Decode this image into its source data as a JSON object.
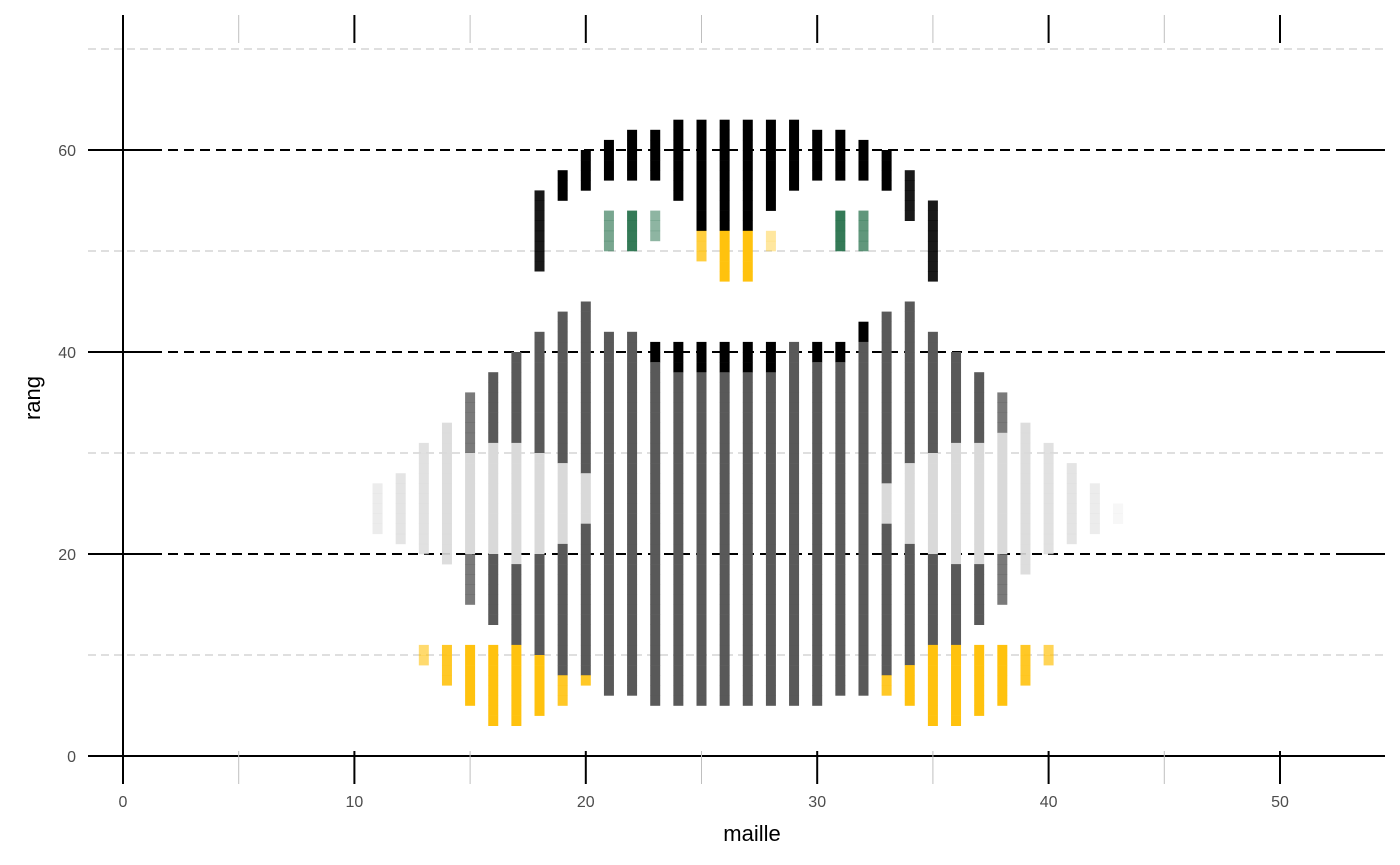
{
  "chart_data": {
    "type": "heatmap",
    "title": "",
    "xlabel": "maille",
    "ylabel": "rang",
    "xlim": [
      -1.5,
      54.5
    ],
    "ylim": [
      -2.5,
      70
    ],
    "x_ticks": [
      0,
      10,
      20,
      30,
      40,
      50
    ],
    "y_ticks": [
      0,
      20,
      40,
      60
    ],
    "x_minor_ticks": [
      5,
      15,
      25,
      35,
      45
    ],
    "y_minor_ticks": [
      10,
      30,
      50,
      70
    ],
    "grid": true,
    "legend": "none",
    "colors": {
      "background": "#ffffff",
      "black": "#000000",
      "dark_grey": "#595959",
      "light_grey": "#d9d9d9",
      "yellow": "#ffc20e",
      "green": "#1e6b45",
      "minor_grid": "#bfbfbf"
    },
    "columns": [
      {
        "x": 11,
        "segments": [
          {
            "y0": 22,
            "y1": 27,
            "color": "light_grey",
            "alpha": 0.5
          }
        ]
      },
      {
        "x": 12,
        "segments": [
          {
            "y0": 21,
            "y1": 28,
            "color": "light_grey",
            "alpha": 0.7
          }
        ]
      },
      {
        "x": 13,
        "segments": [
          {
            "y0": 20,
            "y1": 31,
            "color": "light_grey",
            "alpha": 0.8
          },
          {
            "y0": 9,
            "y1": 11,
            "color": "yellow",
            "alpha": 0.6
          }
        ]
      },
      {
        "x": 14,
        "segments": [
          {
            "y0": 19,
            "y1": 33,
            "color": "light_grey",
            "alpha": 0.9
          },
          {
            "y0": 7,
            "y1": 11,
            "color": "yellow",
            "alpha": 0.9
          }
        ]
      },
      {
        "x": 15,
        "segments": [
          {
            "y0": 30,
            "y1": 36,
            "color": "dark_grey",
            "alpha": 0.8
          },
          {
            "y0": 20,
            "y1": 30,
            "color": "light_grey",
            "alpha": 1
          },
          {
            "y0": 15,
            "y1": 20,
            "color": "dark_grey",
            "alpha": 0.8
          },
          {
            "y0": 5,
            "y1": 11,
            "color": "yellow",
            "alpha": 1
          }
        ]
      },
      {
        "x": 16,
        "segments": [
          {
            "y0": 31,
            "y1": 38,
            "color": "dark_grey",
            "alpha": 1
          },
          {
            "y0": 20,
            "y1": 31,
            "color": "light_grey",
            "alpha": 1
          },
          {
            "y0": 13,
            "y1": 20,
            "color": "dark_grey",
            "alpha": 1
          },
          {
            "y0": 3,
            "y1": 11,
            "color": "yellow",
            "alpha": 1
          }
        ]
      },
      {
        "x": 17,
        "segments": [
          {
            "y0": 31,
            "y1": 40,
            "color": "dark_grey",
            "alpha": 1
          },
          {
            "y0": 19,
            "y1": 31,
            "color": "light_grey",
            "alpha": 1
          },
          {
            "y0": 11,
            "y1": 19,
            "color": "dark_grey",
            "alpha": 1
          },
          {
            "y0": 3,
            "y1": 11,
            "color": "yellow",
            "alpha": 1
          }
        ]
      },
      {
        "x": 18,
        "segments": [
          {
            "y0": 48,
            "y1": 56,
            "color": "black",
            "alpha": 0.9
          },
          {
            "y0": 30,
            "y1": 42,
            "color": "dark_grey",
            "alpha": 1
          },
          {
            "y0": 20,
            "y1": 30,
            "color": "light_grey",
            "alpha": 1
          },
          {
            "y0": 10,
            "y1": 20,
            "color": "dark_grey",
            "alpha": 1
          },
          {
            "y0": 4,
            "y1": 10,
            "color": "yellow",
            "alpha": 1
          }
        ]
      },
      {
        "x": 19,
        "segments": [
          {
            "y0": 55,
            "y1": 58,
            "color": "black",
            "alpha": 1
          },
          {
            "y0": 29,
            "y1": 44,
            "color": "dark_grey",
            "alpha": 1
          },
          {
            "y0": 21,
            "y1": 29,
            "color": "light_grey",
            "alpha": 1
          },
          {
            "y0": 8,
            "y1": 21,
            "color": "dark_grey",
            "alpha": 1
          },
          {
            "y0": 5,
            "y1": 8,
            "color": "yellow",
            "alpha": 0.9
          }
        ]
      },
      {
        "x": 20,
        "segments": [
          {
            "y0": 56,
            "y1": 60,
            "color": "black",
            "alpha": 1
          },
          {
            "y0": 28,
            "y1": 45,
            "color": "dark_grey",
            "alpha": 1
          },
          {
            "y0": 23,
            "y1": 28,
            "color": "light_grey",
            "alpha": 1
          },
          {
            "y0": 8,
            "y1": 23,
            "color": "dark_grey",
            "alpha": 1
          },
          {
            "y0": 7,
            "y1": 8,
            "color": "yellow",
            "alpha": 0.9
          }
        ]
      },
      {
        "x": 21,
        "segments": [
          {
            "y0": 57,
            "y1": 61,
            "color": "black",
            "alpha": 1
          },
          {
            "y0": 50,
            "y1": 54,
            "color": "green",
            "alpha": 0.6
          },
          {
            "y0": 26,
            "y1": 42,
            "color": "dark_grey",
            "alpha": 1
          },
          {
            "y0": 6,
            "y1": 26,
            "color": "dark_grey",
            "alpha": 1
          }
        ]
      },
      {
        "x": 22,
        "segments": [
          {
            "y0": 57,
            "y1": 62,
            "color": "black",
            "alpha": 1
          },
          {
            "y0": 50,
            "y1": 54,
            "color": "green",
            "alpha": 0.9
          },
          {
            "y0": 6,
            "y1": 42,
            "color": "dark_grey",
            "alpha": 1
          }
        ]
      },
      {
        "x": 23,
        "segments": [
          {
            "y0": 57,
            "y1": 62,
            "color": "black",
            "alpha": 1
          },
          {
            "y0": 51,
            "y1": 54,
            "color": "green",
            "alpha": 0.5
          },
          {
            "y0": 39,
            "y1": 41,
            "color": "black",
            "alpha": 1
          },
          {
            "y0": 5,
            "y1": 39,
            "color": "dark_grey",
            "alpha": 1
          }
        ]
      },
      {
        "x": 24,
        "segments": [
          {
            "y0": 55,
            "y1": 63,
            "color": "black",
            "alpha": 1
          },
          {
            "y0": 38,
            "y1": 41,
            "color": "black",
            "alpha": 1
          },
          {
            "y0": 5,
            "y1": 38,
            "color": "dark_grey",
            "alpha": 1
          }
        ]
      },
      {
        "x": 25,
        "segments": [
          {
            "y0": 52,
            "y1": 63,
            "color": "black",
            "alpha": 1
          },
          {
            "y0": 49,
            "y1": 52,
            "color": "yellow",
            "alpha": 0.8
          },
          {
            "y0": 38,
            "y1": 41,
            "color": "black",
            "alpha": 1
          },
          {
            "y0": 5,
            "y1": 38,
            "color": "dark_grey",
            "alpha": 1
          }
        ]
      },
      {
        "x": 26,
        "segments": [
          {
            "y0": 52,
            "y1": 63,
            "color": "black",
            "alpha": 1
          },
          {
            "y0": 47,
            "y1": 52,
            "color": "yellow",
            "alpha": 1
          },
          {
            "y0": 38,
            "y1": 41,
            "color": "black",
            "alpha": 1
          },
          {
            "y0": 5,
            "y1": 38,
            "color": "dark_grey",
            "alpha": 1
          }
        ]
      },
      {
        "x": 27,
        "segments": [
          {
            "y0": 52,
            "y1": 63,
            "color": "black",
            "alpha": 1
          },
          {
            "y0": 47,
            "y1": 52,
            "color": "yellow",
            "alpha": 1
          },
          {
            "y0": 38,
            "y1": 41,
            "color": "black",
            "alpha": 1
          },
          {
            "y0": 5,
            "y1": 38,
            "color": "dark_grey",
            "alpha": 1
          }
        ]
      },
      {
        "x": 28,
        "segments": [
          {
            "y0": 54,
            "y1": 63,
            "color": "black",
            "alpha": 1
          },
          {
            "y0": 50,
            "y1": 52,
            "color": "yellow",
            "alpha": 0.4
          },
          {
            "y0": 38,
            "y1": 41,
            "color": "black",
            "alpha": 1
          },
          {
            "y0": 5,
            "y1": 38,
            "color": "dark_grey",
            "alpha": 1
          }
        ]
      },
      {
        "x": 29,
        "segments": [
          {
            "y0": 56,
            "y1": 63,
            "color": "black",
            "alpha": 1
          },
          {
            "y0": 5,
            "y1": 41,
            "color": "dark_grey",
            "alpha": 1
          }
        ]
      },
      {
        "x": 30,
        "segments": [
          {
            "y0": 57,
            "y1": 62,
            "color": "black",
            "alpha": 1
          },
          {
            "y0": 39,
            "y1": 41,
            "color": "black",
            "alpha": 1
          },
          {
            "y0": 5,
            "y1": 39,
            "color": "dark_grey",
            "alpha": 1
          }
        ]
      },
      {
        "x": 31,
        "segments": [
          {
            "y0": 57,
            "y1": 62,
            "color": "black",
            "alpha": 1
          },
          {
            "y0": 50,
            "y1": 54,
            "color": "green",
            "alpha": 0.9
          },
          {
            "y0": 39,
            "y1": 41,
            "color": "black",
            "alpha": 1
          },
          {
            "y0": 6,
            "y1": 39,
            "color": "dark_grey",
            "alpha": 1
          }
        ]
      },
      {
        "x": 32,
        "segments": [
          {
            "y0": 57,
            "y1": 61,
            "color": "black",
            "alpha": 1
          },
          {
            "y0": 50,
            "y1": 54,
            "color": "green",
            "alpha": 0.7
          },
          {
            "y0": 41,
            "y1": 43,
            "color": "black",
            "alpha": 1
          },
          {
            "y0": 27,
            "y1": 41,
            "color": "dark_grey",
            "alpha": 1
          },
          {
            "y0": 6,
            "y1": 27,
            "color": "dark_grey",
            "alpha": 1
          }
        ]
      },
      {
        "x": 33,
        "segments": [
          {
            "y0": 56,
            "y1": 60,
            "color": "black",
            "alpha": 1
          },
          {
            "y0": 27,
            "y1": 44,
            "color": "dark_grey",
            "alpha": 1
          },
          {
            "y0": 23,
            "y1": 27,
            "color": "light_grey",
            "alpha": 1
          },
          {
            "y0": 8,
            "y1": 23,
            "color": "dark_grey",
            "alpha": 1
          },
          {
            "y0": 6,
            "y1": 8,
            "color": "yellow",
            "alpha": 0.9
          }
        ]
      },
      {
        "x": 34,
        "segments": [
          {
            "y0": 53,
            "y1": 58,
            "color": "black",
            "alpha": 0.9
          },
          {
            "y0": 29,
            "y1": 45,
            "color": "dark_grey",
            "alpha": 1
          },
          {
            "y0": 21,
            "y1": 29,
            "color": "light_grey",
            "alpha": 1
          },
          {
            "y0": 9,
            "y1": 21,
            "color": "dark_grey",
            "alpha": 1
          },
          {
            "y0": 5,
            "y1": 9,
            "color": "yellow",
            "alpha": 1
          }
        ]
      },
      {
        "x": 35,
        "segments": [
          {
            "y0": 47,
            "y1": 55,
            "color": "black",
            "alpha": 0.9
          },
          {
            "y0": 30,
            "y1": 42,
            "color": "dark_grey",
            "alpha": 1
          },
          {
            "y0": 20,
            "y1": 30,
            "color": "light_grey",
            "alpha": 1
          },
          {
            "y0": 11,
            "y1": 20,
            "color": "dark_grey",
            "alpha": 1
          },
          {
            "y0": 3,
            "y1": 11,
            "color": "yellow",
            "alpha": 1
          }
        ]
      },
      {
        "x": 36,
        "segments": [
          {
            "y0": 31,
            "y1": 40,
            "color": "dark_grey",
            "alpha": 1
          },
          {
            "y0": 19,
            "y1": 31,
            "color": "light_grey",
            "alpha": 1
          },
          {
            "y0": 11,
            "y1": 19,
            "color": "dark_grey",
            "alpha": 1
          },
          {
            "y0": 3,
            "y1": 11,
            "color": "yellow",
            "alpha": 1
          }
        ]
      },
      {
        "x": 37,
        "segments": [
          {
            "y0": 31,
            "y1": 38,
            "color": "dark_grey",
            "alpha": 1
          },
          {
            "y0": 19,
            "y1": 31,
            "color": "light_grey",
            "alpha": 1
          },
          {
            "y0": 13,
            "y1": 19,
            "color": "dark_grey",
            "alpha": 1
          },
          {
            "y0": 4,
            "y1": 11,
            "color": "yellow",
            "alpha": 1
          }
        ]
      },
      {
        "x": 38,
        "segments": [
          {
            "y0": 32,
            "y1": 36,
            "color": "dark_grey",
            "alpha": 0.8
          },
          {
            "y0": 20,
            "y1": 32,
            "color": "light_grey",
            "alpha": 1
          },
          {
            "y0": 15,
            "y1": 20,
            "color": "dark_grey",
            "alpha": 0.8
          },
          {
            "y0": 5,
            "y1": 11,
            "color": "yellow",
            "alpha": 1
          }
        ]
      },
      {
        "x": 39,
        "segments": [
          {
            "y0": 18,
            "y1": 33,
            "color": "light_grey",
            "alpha": 0.9
          },
          {
            "y0": 7,
            "y1": 11,
            "color": "yellow",
            "alpha": 0.9
          }
        ]
      },
      {
        "x": 40,
        "segments": [
          {
            "y0": 20,
            "y1": 31,
            "color": "light_grey",
            "alpha": 0.8
          },
          {
            "y0": 9,
            "y1": 11,
            "color": "yellow",
            "alpha": 0.7
          }
        ]
      },
      {
        "x": 41,
        "segments": [
          {
            "y0": 21,
            "y1": 29,
            "color": "light_grey",
            "alpha": 0.7
          }
        ]
      },
      {
        "x": 42,
        "segments": [
          {
            "y0": 22,
            "y1": 27,
            "color": "light_grey",
            "alpha": 0.5
          }
        ]
      },
      {
        "x": 43,
        "segments": [
          {
            "y0": 23,
            "y1": 25,
            "color": "light_grey",
            "alpha": 0.2
          }
        ]
      }
    ]
  }
}
